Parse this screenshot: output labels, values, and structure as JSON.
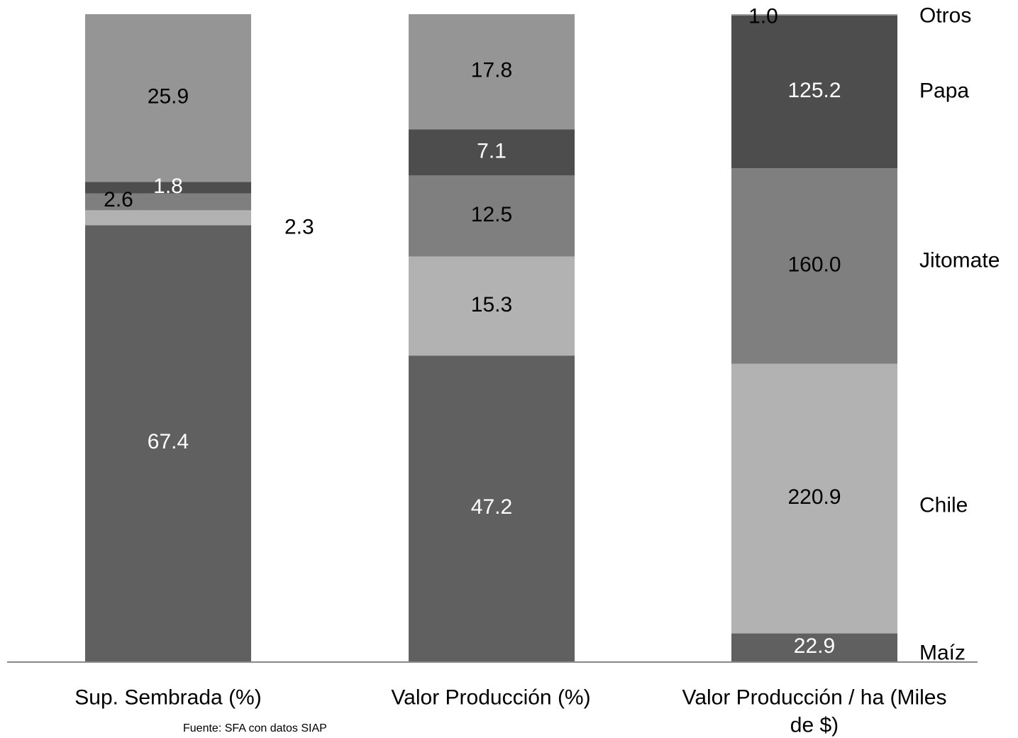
{
  "chart_data": {
    "type": "bar",
    "stacked": true,
    "categories": [
      "Sup. Sembrada (%)",
      "Valor Producción (%)",
      "Valor Producción / ha (Miles de $)"
    ],
    "series": [
      {
        "name": "Maíz",
        "values": [
          67.4,
          47.2,
          22.9
        ],
        "color": "#606060",
        "label_color": "#ffffff"
      },
      {
        "name": "Chile",
        "values": [
          2.3,
          15.3,
          220.9
        ],
        "color": "#b2b2b2",
        "label_color": "#000000"
      },
      {
        "name": "Jitomate",
        "values": [
          2.6,
          12.5,
          160.0
        ],
        "color": "#7f7f7f",
        "label_color": "#000000"
      },
      {
        "name": "Papa",
        "values": [
          1.8,
          7.1,
          125.2
        ],
        "color": "#4d4d4d",
        "label_color": "#ffffff"
      },
      {
        "name": "Otros",
        "values": [
          25.9,
          17.8,
          1.0
        ],
        "color": "#959595",
        "label_color": "#000000"
      }
    ],
    "data_labels": [
      [
        "67.4",
        "2.3",
        "2.6",
        "1.8",
        "25.9"
      ],
      [
        "47.2",
        "15.3",
        "12.5",
        "7.1",
        "17.8"
      ],
      [
        "22.9",
        "220.9",
        "160.0",
        "125.2",
        "1.0"
      ]
    ],
    "legend_placement": "right",
    "grid": false,
    "axis_line_color": "#888888"
  },
  "source_note": "Fuente: SFA con datos SIAP"
}
